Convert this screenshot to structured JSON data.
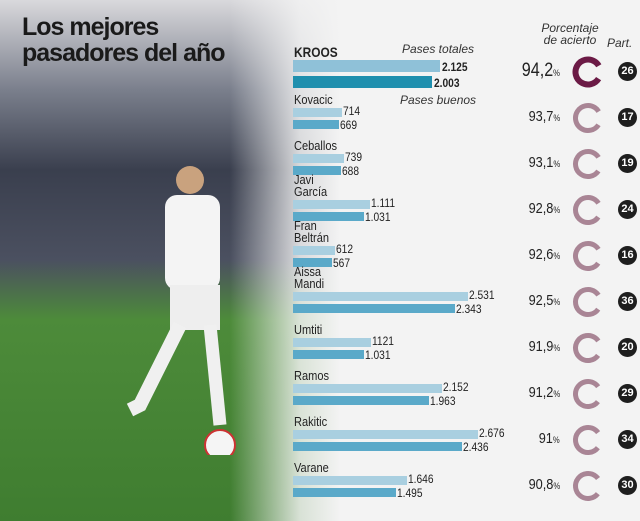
{
  "title": "Los mejores pasadores del año",
  "headers": {
    "total": "Pases totales",
    "good": "Pases buenos",
    "accuracy": "Porcentaje de acierto",
    "matches": "Part."
  },
  "colors": {
    "total_bar": "#a9cfe0",
    "good_bar": "#5aa9c9",
    "kroos_total": "#8fc1d8",
    "kroos_good": "#1f8fae",
    "ring_highlight": "#6b1a45",
    "ring": "#a98595"
  },
  "chart_data": {
    "type": "bar",
    "title": "Los mejores pasadores del año",
    "series_labels": [
      "Pases totales",
      "Pases buenos"
    ],
    "players": [
      {
        "name": "KROOS",
        "total": 2125,
        "good": 2003,
        "total_label": "2.125",
        "good_label": "2.003",
        "accuracy": "94,2",
        "matches": "26"
      },
      {
        "name": "Kovacic",
        "total": 714,
        "good": 669,
        "total_label": "714",
        "good_label": "669",
        "accuracy": "93,7",
        "matches": "17"
      },
      {
        "name": "Ceballos",
        "total": 739,
        "good": 688,
        "total_label": "739",
        "good_label": "688",
        "accuracy": "93,1",
        "matches": "19"
      },
      {
        "name": "Javi García",
        "total": 1111,
        "good": 1031,
        "total_label": "1.111",
        "good_label": "1.031",
        "accuracy": "92,8",
        "matches": "24"
      },
      {
        "name": "Fran Beltrán",
        "total": 612,
        "good": 567,
        "total_label": "612",
        "good_label": "567",
        "accuracy": "92,6",
        "matches": "16"
      },
      {
        "name": "Aissa Mandi",
        "total": 2531,
        "good": 2343,
        "total_label": "2.531",
        "good_label": "2.343",
        "accuracy": "92,5",
        "matches": "36"
      },
      {
        "name": "Umtiti",
        "total": 1121,
        "good": 1031,
        "total_label": "1121",
        "good_label": "1.031",
        "accuracy": "91,9",
        "matches": "20"
      },
      {
        "name": "Ramos",
        "total": 2152,
        "good": 1963,
        "total_label": "2.152",
        "good_label": "1.963",
        "accuracy": "91,2",
        "matches": "29"
      },
      {
        "name": "Rakitic",
        "total": 2676,
        "good": 2436,
        "total_label": "2.676",
        "good_label": "2.436",
        "accuracy": "91",
        "matches": "34"
      },
      {
        "name": "Varane",
        "total": 1646,
        "good": 1495,
        "total_label": "1.646",
        "good_label": "1.495",
        "accuracy": "90,8",
        "matches": "30"
      }
    ],
    "percent_suffix": "%"
  }
}
